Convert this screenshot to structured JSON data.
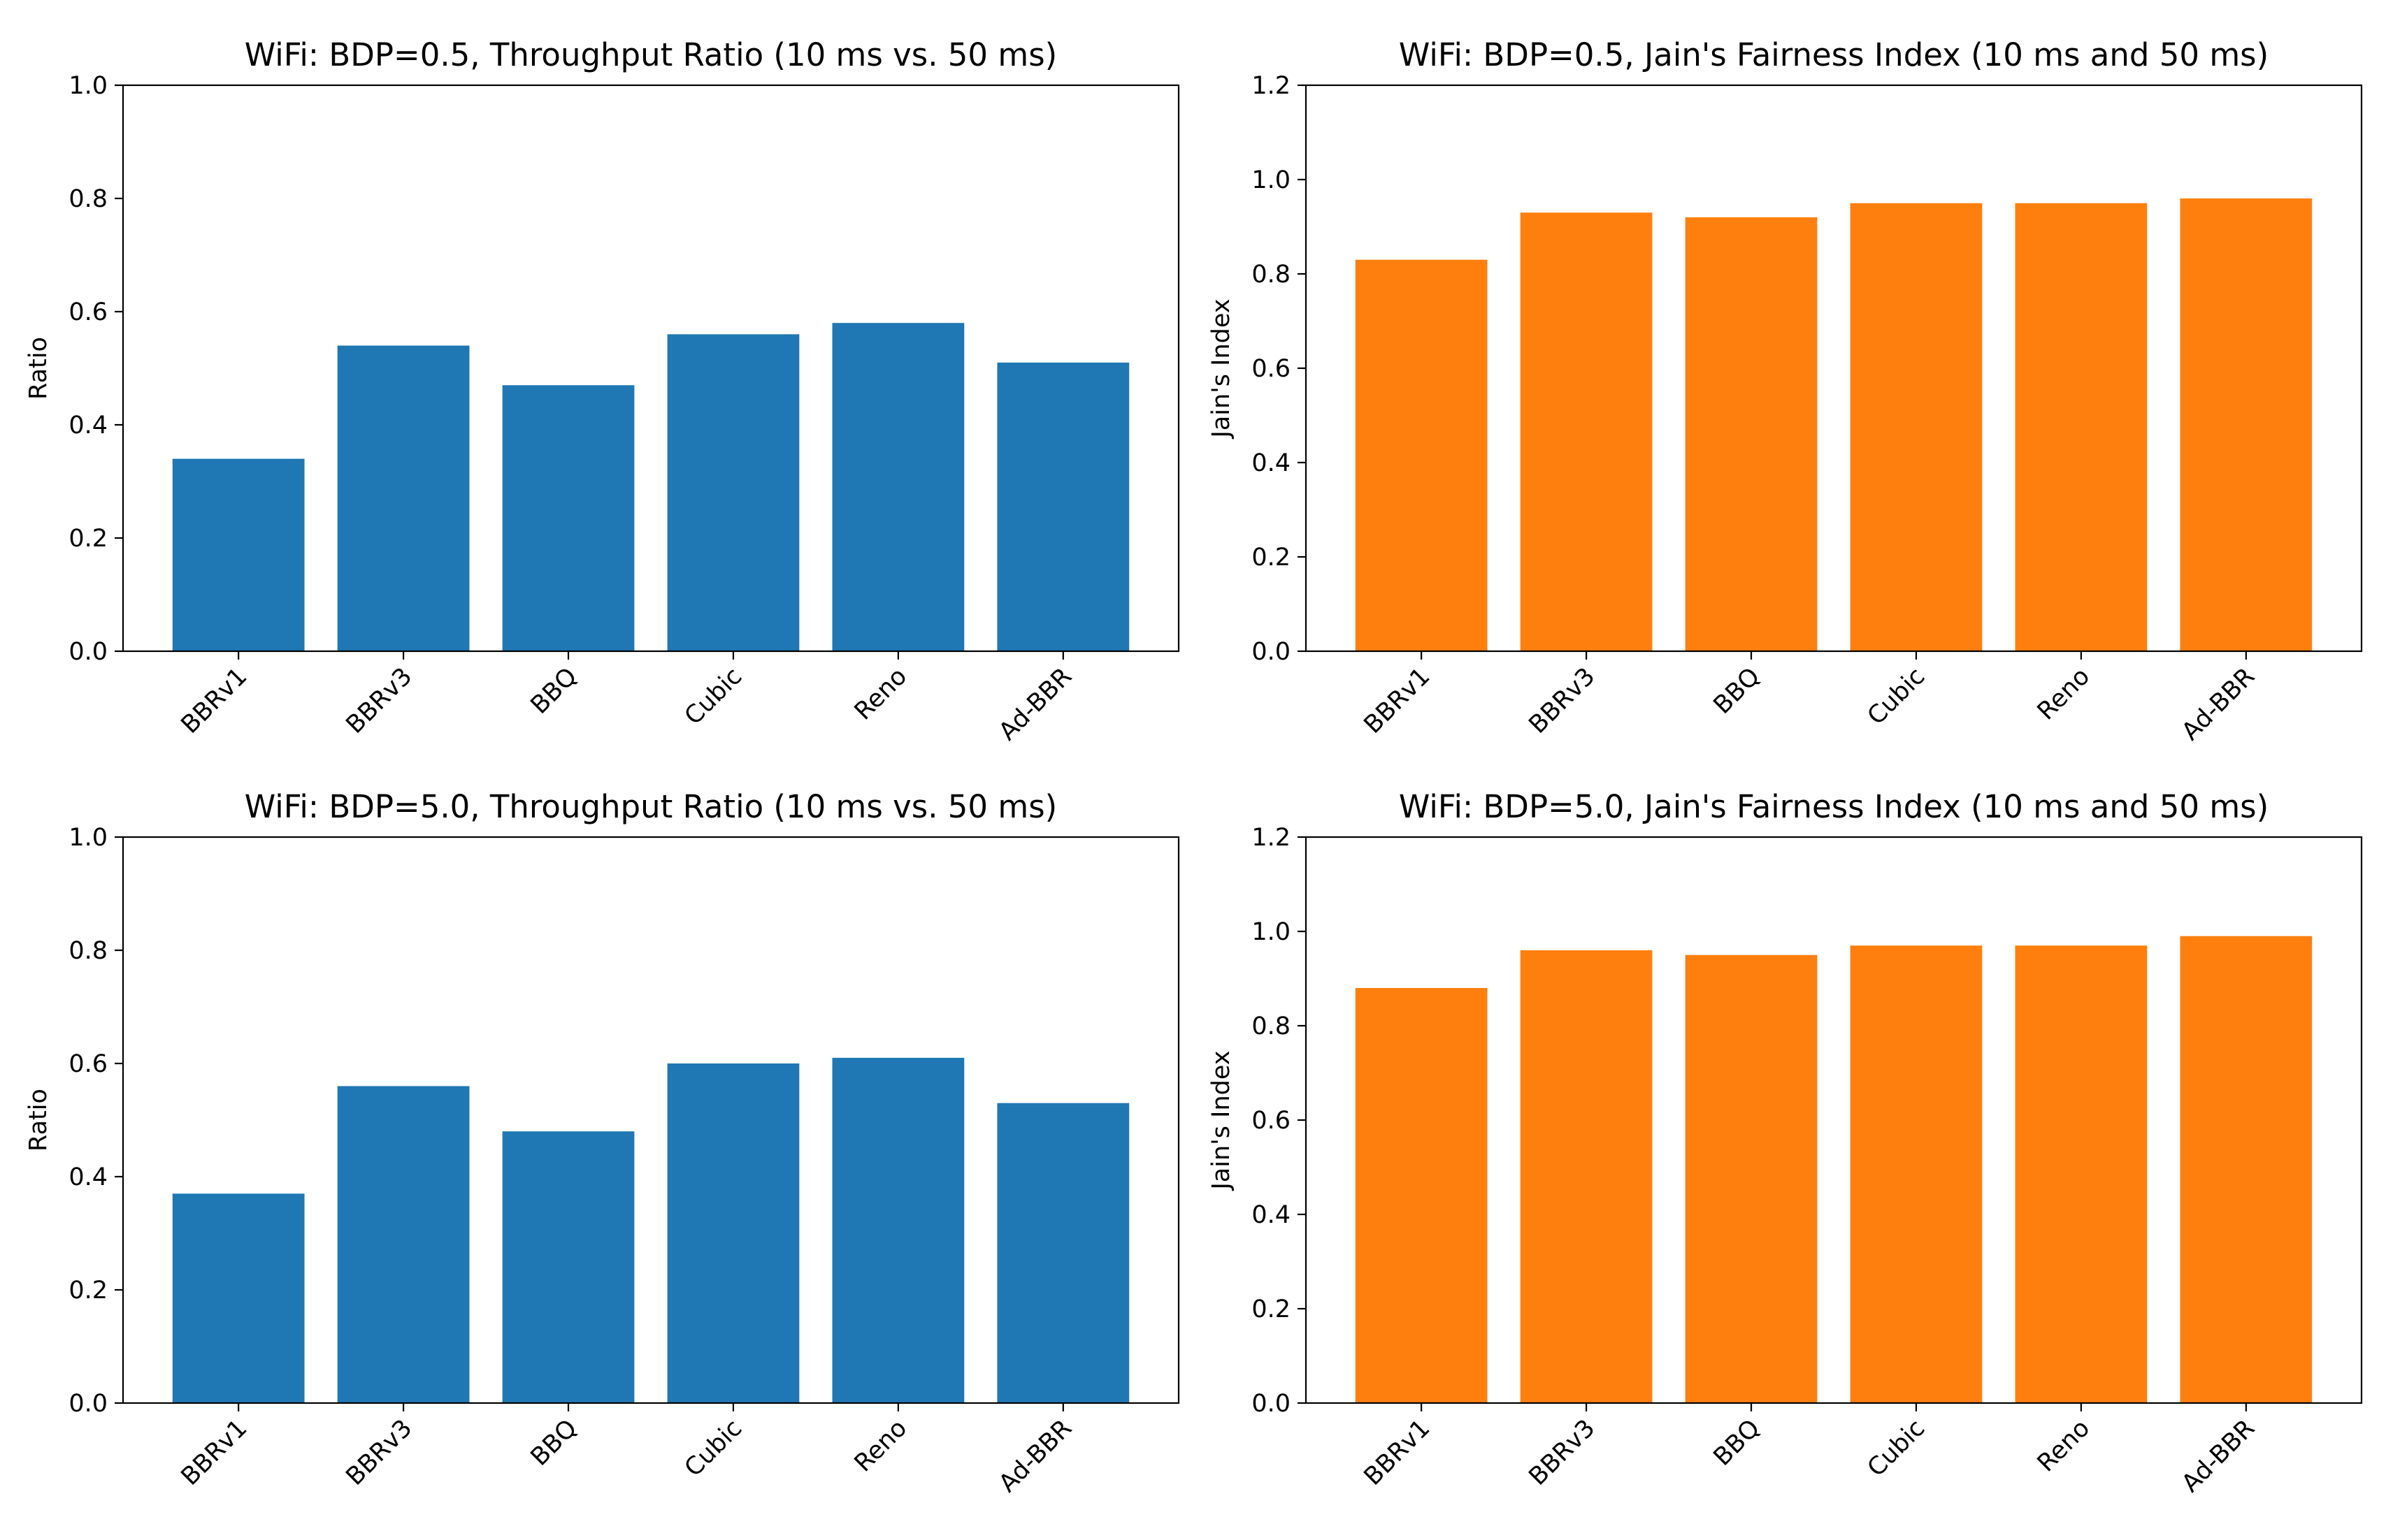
{
  "chart_data": [
    {
      "type": "bar",
      "title": "WiFi: BDP=0.5, Throughput Ratio (10 ms vs. 50 ms)",
      "xlabel": "",
      "ylabel": "Ratio",
      "ylim": [
        0,
        1.0
      ],
      "yticks": [
        "0.0",
        "0.2",
        "0.4",
        "0.6",
        "0.8",
        "1.0"
      ],
      "categories": [
        "BBRv1",
        "BBRv3",
        "BBQ",
        "Cubic",
        "Reno",
        "Ad-BBR"
      ],
      "values": [
        0.34,
        0.54,
        0.47,
        0.56,
        0.58,
        0.51
      ],
      "color": "#1f77b4"
    },
    {
      "type": "bar",
      "title": "WiFi: BDP=0.5, Jain's Fairness Index (10 ms and 50 ms)",
      "xlabel": "",
      "ylabel": "Jain's Index",
      "ylim": [
        0,
        1.2
      ],
      "yticks": [
        "0.0",
        "0.2",
        "0.4",
        "0.6",
        "0.8",
        "1.0",
        "1.2"
      ],
      "categories": [
        "BBRv1",
        "BBRv3",
        "BBQ",
        "Cubic",
        "Reno",
        "Ad-BBR"
      ],
      "values": [
        0.83,
        0.93,
        0.92,
        0.95,
        0.95,
        0.96
      ],
      "color": "#ff7f0e"
    },
    {
      "type": "bar",
      "title": "WiFi: BDP=5.0, Throughput Ratio (10 ms vs. 50 ms)",
      "xlabel": "",
      "ylabel": "Ratio",
      "ylim": [
        0,
        1.0
      ],
      "yticks": [
        "0.0",
        "0.2",
        "0.4",
        "0.6",
        "0.8",
        "1.0"
      ],
      "categories": [
        "BBRv1",
        "BBRv3",
        "BBQ",
        "Cubic",
        "Reno",
        "Ad-BBR"
      ],
      "values": [
        0.37,
        0.56,
        0.48,
        0.6,
        0.61,
        0.53
      ],
      "color": "#1f77b4"
    },
    {
      "type": "bar",
      "title": "WiFi: BDP=5.0, Jain's Fairness Index (10 ms and 50 ms)",
      "xlabel": "",
      "ylabel": "Jain's Index",
      "ylim": [
        0,
        1.2
      ],
      "yticks": [
        "0.0",
        "0.2",
        "0.4",
        "0.6",
        "0.8",
        "1.0",
        "1.2"
      ],
      "categories": [
        "BBRv1",
        "BBRv3",
        "BBQ",
        "Cubic",
        "Reno",
        "Ad-BBR"
      ],
      "values": [
        0.88,
        0.96,
        0.95,
        0.97,
        0.97,
        0.99
      ],
      "color": "#ff7f0e"
    }
  ]
}
